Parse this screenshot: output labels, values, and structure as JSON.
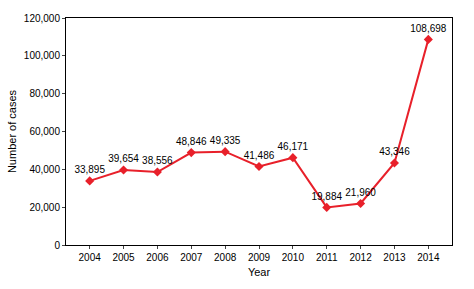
{
  "chart_data": {
    "type": "line",
    "x_label": "Year",
    "y_label": "Number of cases",
    "categories": [
      "2004",
      "2005",
      "2006",
      "2007",
      "2008",
      "2009",
      "2010",
      "2011",
      "2012",
      "2013",
      "2014"
    ],
    "values": [
      33895,
      39654,
      38556,
      48846,
      49335,
      41486,
      46171,
      19884,
      21960,
      43346,
      108698
    ],
    "value_labels": [
      "33,895",
      "39,654",
      "38,556",
      "48,846",
      "49,335",
      "41,486",
      "46,171",
      "19,884",
      "21,960",
      "43,346",
      "108,698"
    ],
    "data_labels": true,
    "color": "#e8202a",
    "marker": "diamond",
    "line_style": "solid",
    "ylim": [
      0,
      120000
    ],
    "yticks": [
      0,
      {
        "value": 20000,
        "label": "20,000"
      },
      {
        "value": 40000,
        "label": "40,000"
      },
      {
        "value": 60000,
        "label": "60,000"
      },
      {
        "value": 80000,
        "label": "80,000"
      },
      {
        "value": 100000,
        "label": "100,000"
      },
      {
        "value": 120000,
        "label": "120,000"
      }
    ],
    "grid": false
  }
}
